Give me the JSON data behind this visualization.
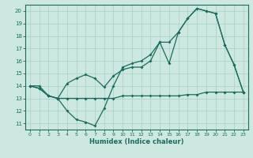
{
  "background_color": "#cce8e0",
  "grid_color": "#aad4ca",
  "line_color": "#1a6b5e",
  "xlabel": "Humidex (Indice chaleur)",
  "ylim": [
    10.5,
    20.5
  ],
  "xlim": [
    -0.5,
    23.5
  ],
  "yticks": [
    11,
    12,
    13,
    14,
    15,
    16,
    17,
    18,
    19,
    20
  ],
  "xticks": [
    0,
    1,
    2,
    3,
    4,
    5,
    6,
    7,
    8,
    9,
    10,
    11,
    12,
    13,
    14,
    15,
    16,
    17,
    18,
    19,
    20,
    21,
    22,
    23
  ],
  "series1_x": [
    0,
    1,
    2,
    3,
    4,
    5,
    6,
    7,
    8,
    9,
    10,
    11,
    12,
    13,
    14,
    15,
    16,
    17,
    18,
    19,
    20,
    21,
    22,
    23
  ],
  "series1_y": [
    14.0,
    13.8,
    13.2,
    13.0,
    14.2,
    14.6,
    14.9,
    14.6,
    13.9,
    14.8,
    15.3,
    15.5,
    15.5,
    16.0,
    17.5,
    15.8,
    18.3,
    19.4,
    20.2,
    20.0,
    19.8,
    17.3,
    15.7,
    13.5
  ],
  "series2_x": [
    0,
    1,
    2,
    3,
    4,
    5,
    6,
    7,
    8,
    9,
    10,
    11,
    12,
    13,
    14,
    15,
    16,
    17,
    18,
    19,
    20,
    21,
    22,
    23
  ],
  "series2_y": [
    14.0,
    13.8,
    13.2,
    13.0,
    12.0,
    11.3,
    11.1,
    10.8,
    12.2,
    14.0,
    15.5,
    15.8,
    16.0,
    16.5,
    17.5,
    17.5,
    18.3,
    19.4,
    20.2,
    20.0,
    19.8,
    17.3,
    15.7,
    13.5
  ],
  "series3_x": [
    0,
    1,
    2,
    3,
    4,
    5,
    6,
    7,
    8,
    9,
    10,
    11,
    12,
    13,
    14,
    15,
    16,
    17,
    18,
    19,
    20,
    21,
    22,
    23
  ],
  "series3_y": [
    14.0,
    14.0,
    13.2,
    13.0,
    13.0,
    13.0,
    13.0,
    13.0,
    13.0,
    13.0,
    13.2,
    13.2,
    13.2,
    13.2,
    13.2,
    13.2,
    13.2,
    13.3,
    13.3,
    13.5,
    13.5,
    13.5,
    13.5,
    13.5
  ]
}
